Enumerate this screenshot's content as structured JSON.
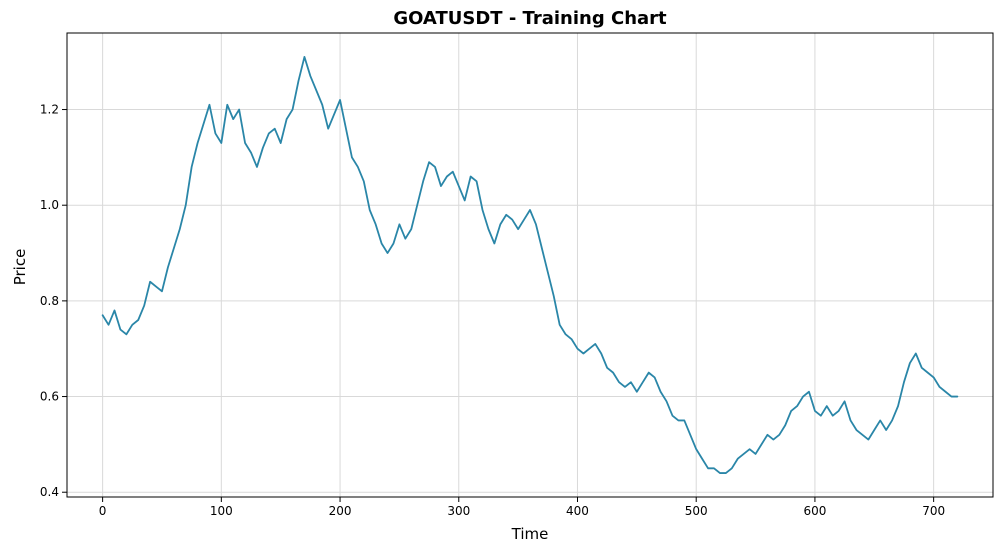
{
  "chart_data": {
    "type": "line",
    "title": "GOATUSDT - Training Chart",
    "xlabel": "Time",
    "ylabel": "Price",
    "xlim": [
      -30,
      750
    ],
    "ylim": [
      0.39,
      1.36
    ],
    "grid": true,
    "x_ticks": [
      0,
      100,
      200,
      300,
      400,
      500,
      600,
      700
    ],
    "y_ticks": [
      0.4,
      0.6,
      0.8,
      1.0,
      1.2
    ],
    "x_tick_labels": [
      "0",
      "100",
      "200",
      "300",
      "400",
      "500",
      "600",
      "700"
    ],
    "y_tick_labels": [
      "0.4",
      "0.6",
      "0.8",
      "1.0",
      "1.2"
    ],
    "series_color": "#2a86a8",
    "series": [
      {
        "points": [
          [
            0,
            0.77
          ],
          [
            5,
            0.75
          ],
          [
            10,
            0.78
          ],
          [
            15,
            0.74
          ],
          [
            20,
            0.73
          ],
          [
            25,
            0.75
          ],
          [
            30,
            0.76
          ],
          [
            35,
            0.79
          ],
          [
            40,
            0.84
          ],
          [
            45,
            0.83
          ],
          [
            50,
            0.82
          ],
          [
            55,
            0.87
          ],
          [
            60,
            0.91
          ],
          [
            65,
            0.95
          ],
          [
            70,
            1.0
          ],
          [
            75,
            1.08
          ],
          [
            80,
            1.13
          ],
          [
            85,
            1.17
          ],
          [
            90,
            1.21
          ],
          [
            95,
            1.15
          ],
          [
            100,
            1.13
          ],
          [
            105,
            1.21
          ],
          [
            110,
            1.18
          ],
          [
            115,
            1.2
          ],
          [
            120,
            1.13
          ],
          [
            125,
            1.11
          ],
          [
            130,
            1.08
          ],
          [
            135,
            1.12
          ],
          [
            140,
            1.15
          ],
          [
            145,
            1.16
          ],
          [
            150,
            1.13
          ],
          [
            155,
            1.18
          ],
          [
            160,
            1.2
          ],
          [
            165,
            1.26
          ],
          [
            170,
            1.31
          ],
          [
            175,
            1.27
          ],
          [
            180,
            1.24
          ],
          [
            185,
            1.21
          ],
          [
            190,
            1.16
          ],
          [
            195,
            1.19
          ],
          [
            200,
            1.22
          ],
          [
            205,
            1.16
          ],
          [
            210,
            1.1
          ],
          [
            215,
            1.08
          ],
          [
            220,
            1.05
          ],
          [
            225,
            0.99
          ],
          [
            230,
            0.96
          ],
          [
            235,
            0.92
          ],
          [
            240,
            0.9
          ],
          [
            245,
            0.92
          ],
          [
            250,
            0.96
          ],
          [
            255,
            0.93
          ],
          [
            260,
            0.95
          ],
          [
            265,
            1.0
          ],
          [
            270,
            1.05
          ],
          [
            275,
            1.09
          ],
          [
            280,
            1.08
          ],
          [
            285,
            1.04
          ],
          [
            290,
            1.06
          ],
          [
            295,
            1.07
          ],
          [
            300,
            1.04
          ],
          [
            305,
            1.01
          ],
          [
            310,
            1.06
          ],
          [
            315,
            1.05
          ],
          [
            320,
            0.99
          ],
          [
            325,
            0.95
          ],
          [
            330,
            0.92
          ],
          [
            335,
            0.96
          ],
          [
            340,
            0.98
          ],
          [
            345,
            0.97
          ],
          [
            350,
            0.95
          ],
          [
            355,
            0.97
          ],
          [
            360,
            0.99
          ],
          [
            365,
            0.96
          ],
          [
            370,
            0.91
          ],
          [
            375,
            0.86
          ],
          [
            380,
            0.81
          ],
          [
            385,
            0.75
          ],
          [
            390,
            0.73
          ],
          [
            395,
            0.72
          ],
          [
            400,
            0.7
          ],
          [
            405,
            0.69
          ],
          [
            410,
            0.7
          ],
          [
            415,
            0.71
          ],
          [
            420,
            0.69
          ],
          [
            425,
            0.66
          ],
          [
            430,
            0.65
          ],
          [
            435,
            0.63
          ],
          [
            440,
            0.62
          ],
          [
            445,
            0.63
          ],
          [
            450,
            0.61
          ],
          [
            455,
            0.63
          ],
          [
            460,
            0.65
          ],
          [
            465,
            0.64
          ],
          [
            470,
            0.61
          ],
          [
            475,
            0.59
          ],
          [
            480,
            0.56
          ],
          [
            485,
            0.55
          ],
          [
            490,
            0.55
          ],
          [
            495,
            0.52
          ],
          [
            500,
            0.49
          ],
          [
            505,
            0.47
          ],
          [
            510,
            0.45
          ],
          [
            515,
            0.45
          ],
          [
            520,
            0.44
          ],
          [
            525,
            0.44
          ],
          [
            530,
            0.45
          ],
          [
            535,
            0.47
          ],
          [
            540,
            0.48
          ],
          [
            545,
            0.49
          ],
          [
            550,
            0.48
          ],
          [
            555,
            0.5
          ],
          [
            560,
            0.52
          ],
          [
            565,
            0.51
          ],
          [
            570,
            0.52
          ],
          [
            575,
            0.54
          ],
          [
            580,
            0.57
          ],
          [
            585,
            0.58
          ],
          [
            590,
            0.6
          ],
          [
            595,
            0.61
          ],
          [
            600,
            0.57
          ],
          [
            605,
            0.56
          ],
          [
            610,
            0.58
          ],
          [
            615,
            0.56
          ],
          [
            620,
            0.57
          ],
          [
            625,
            0.59
          ],
          [
            630,
            0.55
          ],
          [
            635,
            0.53
          ],
          [
            640,
            0.52
          ],
          [
            645,
            0.51
          ],
          [
            650,
            0.53
          ],
          [
            655,
            0.55
          ],
          [
            660,
            0.53
          ],
          [
            665,
            0.55
          ],
          [
            670,
            0.58
          ],
          [
            675,
            0.63
          ],
          [
            680,
            0.67
          ],
          [
            685,
            0.69
          ],
          [
            690,
            0.66
          ],
          [
            695,
            0.65
          ],
          [
            700,
            0.64
          ],
          [
            705,
            0.62
          ],
          [
            710,
            0.61
          ],
          [
            715,
            0.6
          ],
          [
            720,
            0.6
          ]
        ]
      }
    ]
  }
}
